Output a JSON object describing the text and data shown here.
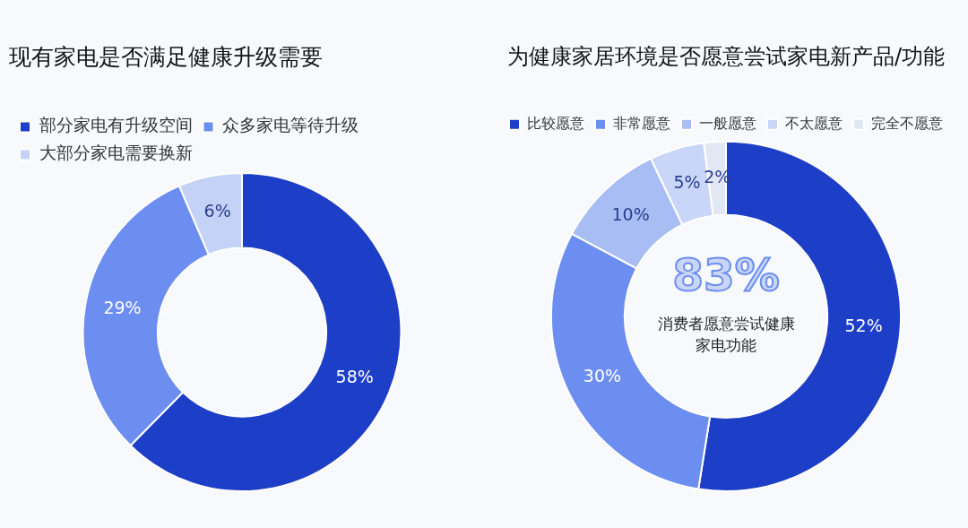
{
  "chart_data": [
    {
      "type": "donut",
      "title": "现有家电是否满足健康升级需要",
      "categories": [
        "部分家电有升级空间",
        "众多家电等待升级",
        "大部分家电需要换新"
      ],
      "values": [
        58,
        29,
        6
      ],
      "colors": [
        "#1d3ec6",
        "#6c8ef0",
        "#c4d2f7"
      ],
      "legend": "top left",
      "value_labels": [
        "58%",
        "29%",
        "6%"
      ]
    },
    {
      "type": "donut",
      "title": "为健康家居环境是否愿意尝试家电新产品/功能",
      "categories": [
        "比较愿意",
        "非常愿意",
        "一般愿意",
        "不太愿意",
        "完全不愿意"
      ],
      "values": [
        52,
        30,
        10,
        5,
        2
      ],
      "colors": [
        "#1d3ec6",
        "#6c8ef0",
        "#a9bdf5",
        "#c9d6f8",
        "#e2e7f4"
      ],
      "legend": "top",
      "value_labels": [
        "52%",
        "30%",
        "10%",
        "5%",
        "2%"
      ],
      "annotations": [
        "83%",
        "消费者愿意尝试健康家电功能"
      ]
    }
  ]
}
